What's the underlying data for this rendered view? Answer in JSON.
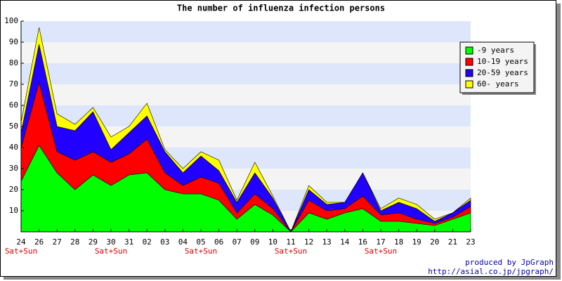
{
  "chart_data": {
    "type": "stacked-area",
    "title": "The number of influenza infection persons",
    "categories": [
      "24",
      "26",
      "27",
      "28",
      "29",
      "30",
      "31",
      "02",
      "03",
      "04",
      "05",
      "06",
      "07",
      "09",
      "10",
      "11",
      "12",
      "13",
      "14",
      "16",
      "17",
      "18",
      "19",
      "20",
      "21",
      "23"
    ],
    "sublabels": [
      "Sat+Sun",
      null,
      null,
      null,
      null,
      "Sat+Sun",
      null,
      null,
      null,
      null,
      "Sat+Sun",
      null,
      null,
      null,
      null,
      "Sat+Sun",
      null,
      null,
      null,
      null,
      "Sat+Sun",
      null,
      null,
      null,
      null,
      null
    ],
    "series": [
      {
        "name": "-9 years",
        "color": "#00ff00",
        "values": [
          24,
          41,
          28,
          20,
          27,
          22,
          27,
          28,
          20,
          18,
          18,
          15,
          6,
          13,
          8,
          0,
          9,
          6,
          9,
          11,
          5,
          5,
          4,
          3,
          6,
          9
        ]
      },
      {
        "name": "10-19 years",
        "color": "#ff0000",
        "values": [
          16,
          30,
          10,
          14,
          11,
          11,
          10,
          16,
          8,
          4,
          8,
          8,
          3,
          5,
          3,
          0,
          6,
          4,
          2,
          6,
          3,
          4,
          2,
          1,
          1,
          3
        ]
      },
      {
        "name": "20-59 years",
        "color": "#2200ff",
        "values": [
          7,
          18,
          12,
          14,
          19,
          6,
          10,
          11,
          10,
          6,
          10,
          6,
          5,
          10,
          5,
          0,
          5,
          3,
          3,
          11,
          2,
          5,
          5,
          1,
          2,
          3
        ]
      },
      {
        "name": "60- years",
        "color": "#ffff00",
        "values": [
          5,
          8,
          6,
          3,
          2,
          6,
          3,
          6,
          1,
          2,
          2,
          5,
          1,
          5,
          1,
          0,
          2,
          1,
          0,
          0,
          1,
          2,
          2,
          1,
          0,
          1
        ]
      }
    ],
    "ylim": [
      0,
      100
    ],
    "yticks": [
      10,
      20,
      30,
      40,
      50,
      60,
      70,
      80,
      90,
      100
    ],
    "grid": true,
    "legend": "top-right",
    "credits": [
      "produced by JpGraph",
      "http://asial.co.jp/jpgraph/"
    ]
  }
}
